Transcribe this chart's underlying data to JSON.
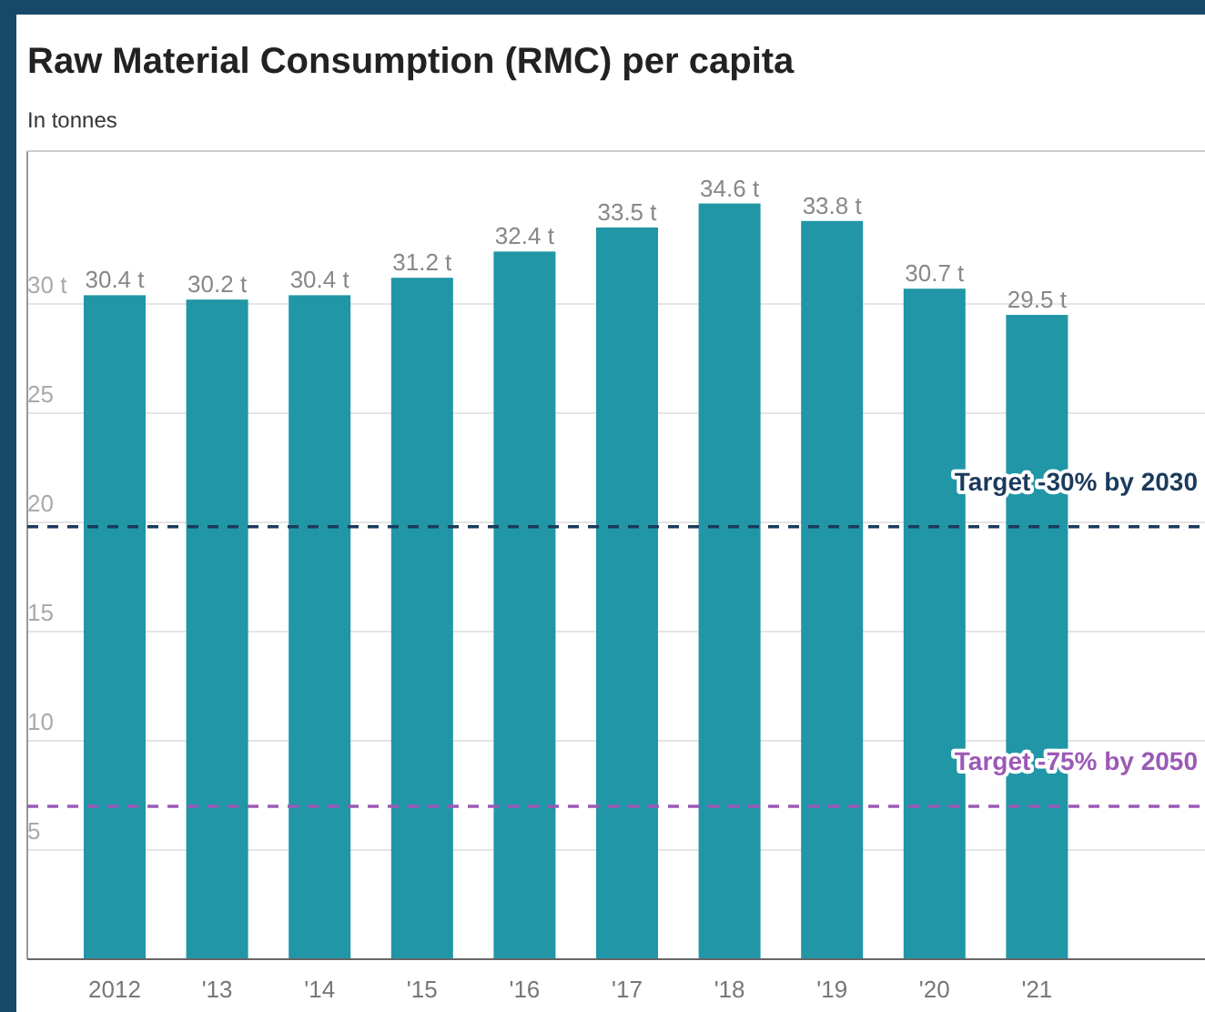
{
  "chart_data": {
    "type": "bar",
    "title": "Raw Material Consumption (RMC) per capita",
    "subtitle": "In tonnes",
    "categories": [
      "2012",
      "'13",
      "'14",
      "'15",
      "'16",
      "'17",
      "'18",
      "'19",
      "'20",
      "'21"
    ],
    "values": [
      30.4,
      30.2,
      30.4,
      31.2,
      32.4,
      33.5,
      34.6,
      33.8,
      30.7,
      29.5
    ],
    "value_labels": [
      "30.4 t",
      "30.2 t",
      "30.4 t",
      "31.2 t",
      "32.4 t",
      "33.5 t",
      "34.6 t",
      "33.8 t",
      "30.7 t",
      "29.5 t"
    ],
    "color": "#2196a6",
    "ylim": [
      0,
      37
    ],
    "yticks": [
      5,
      10,
      15,
      20,
      25,
      {
        "value": 30,
        "label": "30 t"
      }
    ],
    "grid": "y",
    "ref_lines": [
      {
        "axis": "y",
        "value": 19.8,
        "label": "Target -30% by 2030",
        "color": "#1b3a5c",
        "line_style": "dashed"
      },
      {
        "axis": "y",
        "value": 7.0,
        "label": "Target -75% by 2050",
        "color": "#9b59b6",
        "line_style": "dashed"
      }
    ]
  }
}
